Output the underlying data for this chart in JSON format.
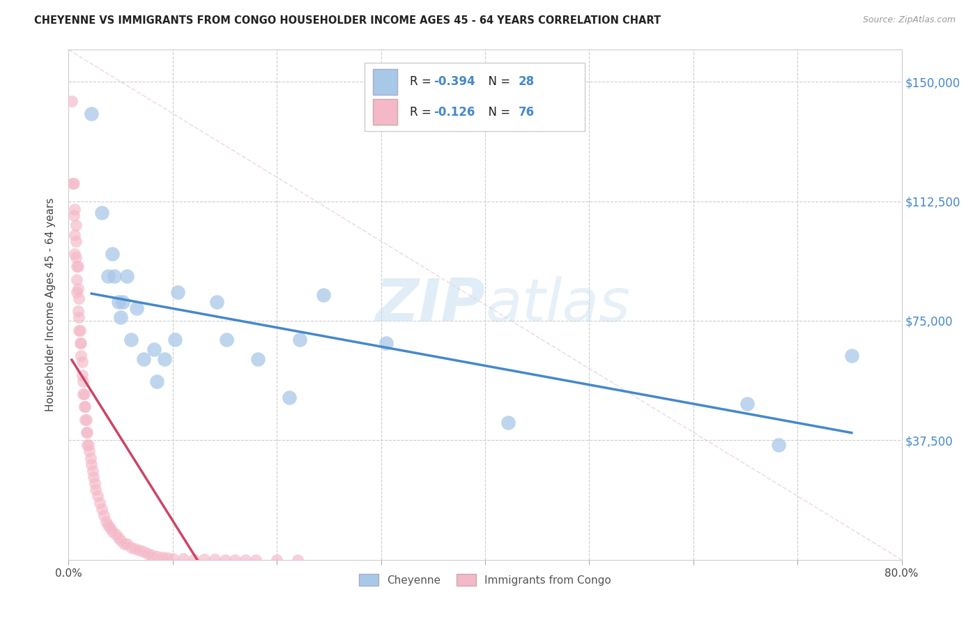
{
  "title": "CHEYENNE VS IMMIGRANTS FROM CONGO HOUSEHOLDER INCOME AGES 45 - 64 YEARS CORRELATION CHART",
  "source": "Source: ZipAtlas.com",
  "ylabel": "Householder Income Ages 45 - 64 years",
  "yticks": [
    0,
    37500,
    75000,
    112500,
    150000
  ],
  "xlim": [
    0.0,
    0.8
  ],
  "ylim": [
    0,
    160000
  ],
  "legend_label1": "Cheyenne",
  "legend_label2": "Immigrants from Congo",
  "R1": "-0.394",
  "N1": "28",
  "R2": "-0.126",
  "N2": "76",
  "color_blue": "#a8c8e8",
  "color_pink": "#f4b8c8",
  "color_blue_line": "#4488cc",
  "color_pink_line": "#cc4466",
  "color_diagonal": "#ddbbcc",
  "watermark": "ZIPatlas",
  "cheyenne_x": [
    0.022,
    0.032,
    0.038,
    0.042,
    0.044,
    0.048,
    0.05,
    0.052,
    0.056,
    0.06,
    0.065,
    0.072,
    0.082,
    0.085,
    0.092,
    0.102,
    0.105,
    0.142,
    0.152,
    0.182,
    0.212,
    0.222,
    0.245,
    0.305,
    0.422,
    0.652,
    0.682,
    0.752
  ],
  "cheyenne_y": [
    140000,
    109000,
    89000,
    96000,
    89000,
    81000,
    76000,
    81000,
    89000,
    69000,
    79000,
    63000,
    66000,
    56000,
    63000,
    69000,
    84000,
    81000,
    69000,
    63000,
    51000,
    69000,
    83000,
    68000,
    43000,
    49000,
    36000,
    64000
  ],
  "congo_x": [
    0.003,
    0.004,
    0.005,
    0.005,
    0.006,
    0.006,
    0.006,
    0.007,
    0.007,
    0.007,
    0.008,
    0.008,
    0.008,
    0.009,
    0.009,
    0.009,
    0.01,
    0.01,
    0.01,
    0.011,
    0.011,
    0.012,
    0.012,
    0.013,
    0.013,
    0.014,
    0.014,
    0.015,
    0.015,
    0.016,
    0.016,
    0.017,
    0.017,
    0.018,
    0.018,
    0.019,
    0.02,
    0.021,
    0.022,
    0.023,
    0.024,
    0.025,
    0.026,
    0.028,
    0.03,
    0.032,
    0.034,
    0.036,
    0.038,
    0.04,
    0.042,
    0.045,
    0.048,
    0.05,
    0.053,
    0.056,
    0.06,
    0.064,
    0.068,
    0.072,
    0.076,
    0.08,
    0.085,
    0.09,
    0.095,
    0.1,
    0.11,
    0.12,
    0.13,
    0.14,
    0.15,
    0.16,
    0.17,
    0.18,
    0.2,
    0.22
  ],
  "congo_y": [
    144000,
    118000,
    118000,
    108000,
    110000,
    102000,
    96000,
    105000,
    100000,
    95000,
    92000,
    88000,
    84000,
    92000,
    85000,
    78000,
    82000,
    76000,
    72000,
    72000,
    68000,
    68000,
    64000,
    62000,
    58000,
    56000,
    52000,
    52000,
    48000,
    48000,
    44000,
    44000,
    40000,
    40000,
    36000,
    36000,
    34000,
    32000,
    30000,
    28000,
    26000,
    24000,
    22000,
    20000,
    18000,
    16000,
    14000,
    12000,
    11000,
    10000,
    9000,
    8000,
    7000,
    6000,
    5000,
    5000,
    4000,
    3500,
    3000,
    2500,
    2000,
    1500,
    1000,
    800,
    600,
    400,
    300,
    200,
    100,
    80,
    60,
    40,
    20,
    10,
    5,
    2
  ]
}
